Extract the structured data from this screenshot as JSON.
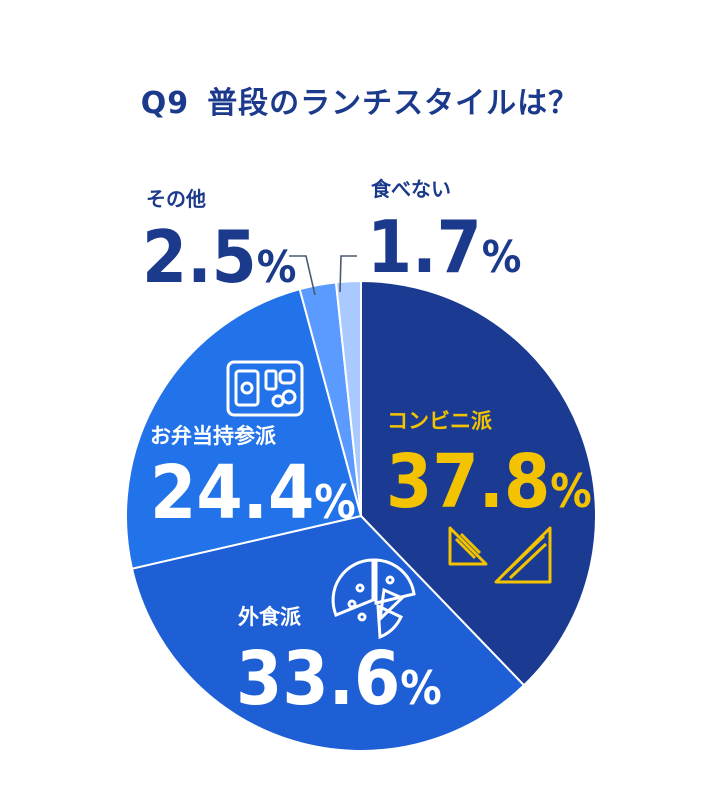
{
  "header": {
    "question_no": "Q9",
    "question": "普段のランチスタイルは？"
  },
  "colors": {
    "title": "#1b3a8c",
    "convenience": "#1b3a92",
    "eat_out": "#1e5fd6",
    "bento": "#2273ea",
    "other": "#5b9bff",
    "no_eat": "#a9c9ff",
    "highlight": "#f3c300",
    "line": "#4a5870"
  },
  "chart_data": {
    "type": "pie",
    "title": "普段のランチスタイルは？",
    "unit": "%",
    "slices": [
      {
        "key": "convenience",
        "label": "コンビニ派",
        "value": 37.8,
        "display": "37.8",
        "icon": "sandwich-icon"
      },
      {
        "key": "eat_out",
        "label": "外食派",
        "value": 33.6,
        "display": "33.6",
        "icon": "pizza-icon"
      },
      {
        "key": "bento",
        "label": "お弁当持参派",
        "value": 24.4,
        "display": "24.4",
        "icon": "bento-box-icon"
      },
      {
        "key": "other",
        "label": "その他",
        "value": 2.5,
        "display": "2.5",
        "icon": ""
      },
      {
        "key": "no_eat",
        "label": "食べない",
        "value": 1.7,
        "display": "1.7",
        "icon": ""
      }
    ]
  }
}
